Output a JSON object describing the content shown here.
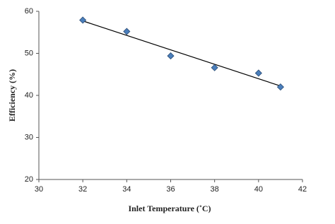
{
  "chart_data": {
    "type": "scatter",
    "x_label": "Inlet Temperature (˚C)",
    "y_label": "Efficiency (%)",
    "x": [
      32,
      34,
      36,
      38,
      40,
      41
    ],
    "values": [
      57.9,
      55.2,
      49.4,
      46.6,
      45.3,
      42
    ],
    "color": "#4a7ebb",
    "trendline": true,
    "xlim": [
      30,
      42
    ],
    "xticks": [
      30,
      32,
      34,
      36,
      38,
      40,
      42
    ],
    "ylim": [
      20,
      60
    ],
    "yticks": [
      20,
      30,
      40,
      50,
      60
    ]
  }
}
